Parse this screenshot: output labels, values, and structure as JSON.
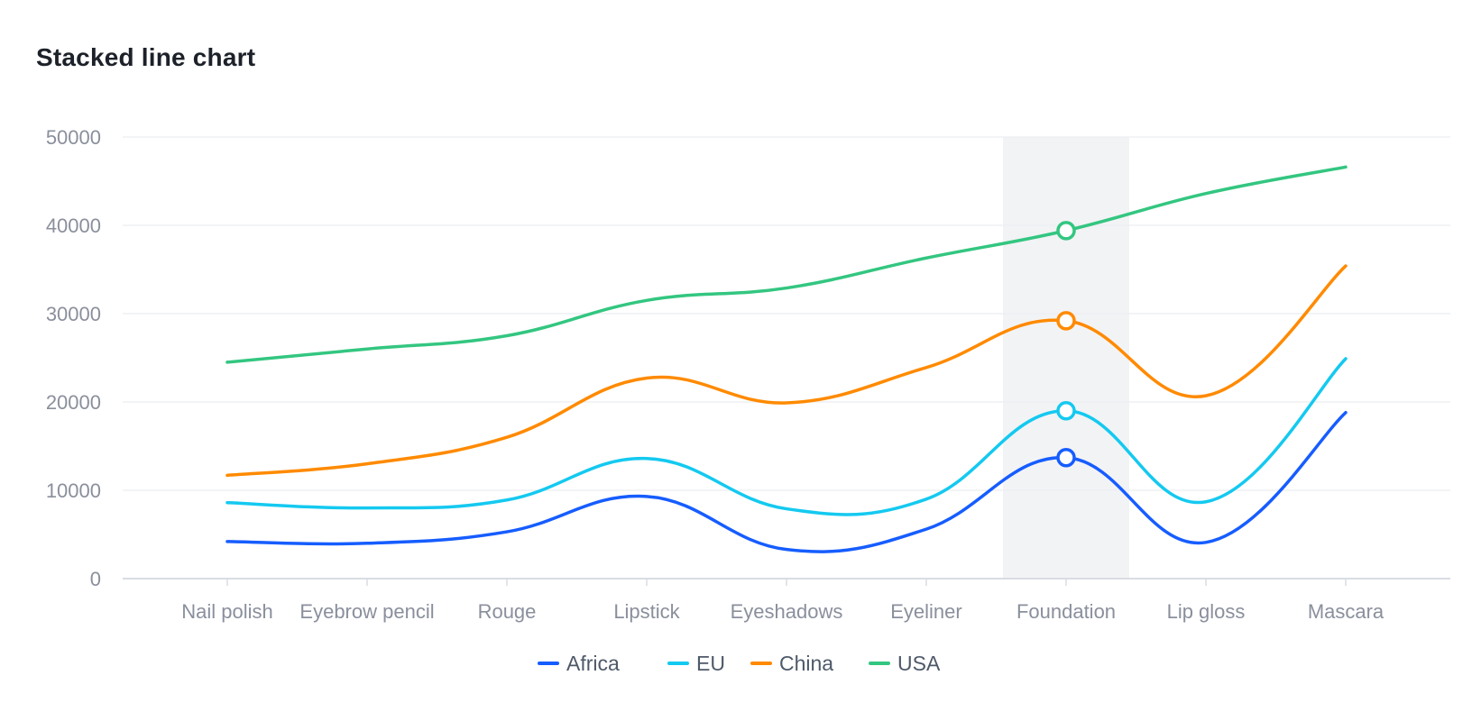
{
  "chart_data": {
    "type": "line",
    "title": "Stacked line chart",
    "stacked": true,
    "categories": [
      "Nail polish",
      "Eyebrow pencil",
      "Rouge",
      "Lipstick",
      "Eyeshadows",
      "Eyeliner",
      "Foundation",
      "Lip gloss",
      "Mascara"
    ],
    "series": [
      {
        "name": "Africa",
        "color": "#165dff",
        "values": [
          4200,
          4000,
          5300,
          9300,
          3300,
          5600,
          13700,
          4100,
          18800
        ]
      },
      {
        "name": "EU",
        "color": "#14c9f0",
        "values": [
          4400,
          4000,
          3600,
          4300,
          4600,
          3400,
          5300,
          4600,
          6100
        ]
      },
      {
        "name": "China",
        "color": "#ff8a00",
        "values": [
          3100,
          5000,
          7100,
          9100,
          12000,
          14900,
          10200,
          12000,
          10500
        ]
      },
      {
        "name": "USA",
        "color": "#33c680",
        "values": [
          12800,
          13000,
          11500,
          8800,
          13000,
          12400,
          10200,
          22900,
          11200
        ]
      }
    ],
    "ylim": [
      0,
      50000
    ],
    "yticks": [
      "0",
      "10000",
      "20000",
      "30000",
      "40000",
      "50000"
    ],
    "grid": true,
    "legend_position": "bottom",
    "highlighted_category": "Foundation",
    "xlabel": "",
    "ylabel": ""
  }
}
